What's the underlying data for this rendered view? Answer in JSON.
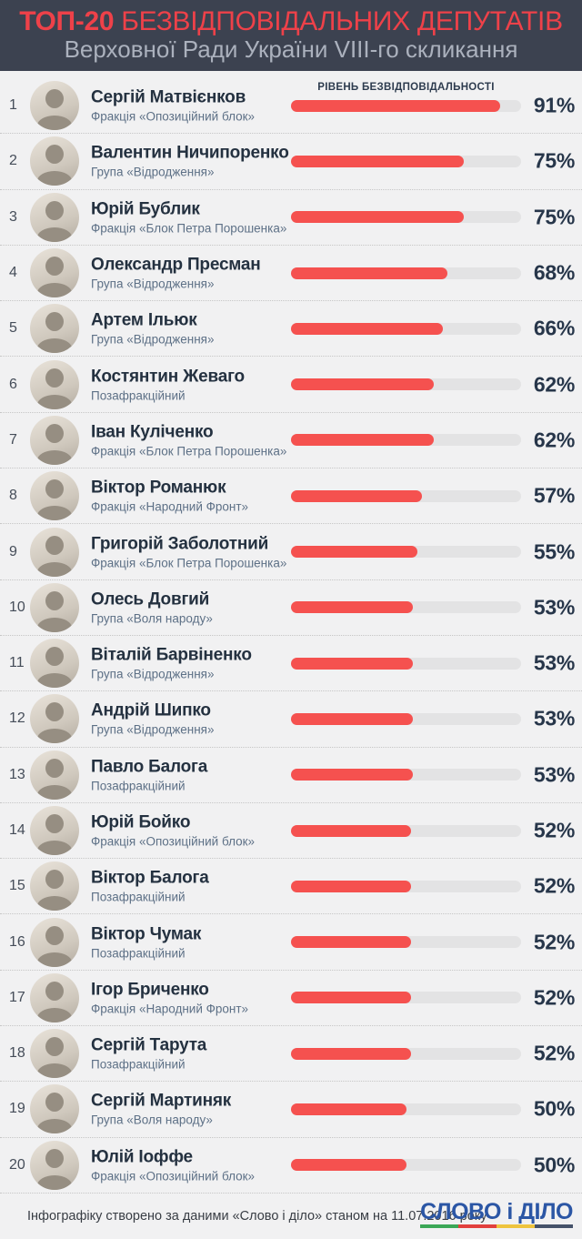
{
  "header": {
    "title_highlight": "ТОП-20",
    "title_rest": "БЕЗВІДПОВІДАЛЬНИХ ДЕПУТАТІВ",
    "subtitle": "Верховної Ради України VIII-го скликання"
  },
  "list": {
    "bar_label": "РІВЕНЬ БЕЗВІДПОВІДАЛЬНОСТІ"
  },
  "deputies": [
    {
      "rank": "1",
      "name": "Сергій Матвієнков",
      "faction": "Фракція «Опозиційний блок»",
      "value": 91,
      "value_label": "91%"
    },
    {
      "rank": "2",
      "name": "Валентин Ничипоренко",
      "faction": "Група «Відродження»",
      "value": 75,
      "value_label": "75%"
    },
    {
      "rank": "3",
      "name": "Юрій Бублик",
      "faction": "Фракція «Блок Петра Порошенка»",
      "value": 75,
      "value_label": "75%"
    },
    {
      "rank": "4",
      "name": "Олександр Пресман",
      "faction": "Група «Відродження»",
      "value": 68,
      "value_label": "68%"
    },
    {
      "rank": "5",
      "name": "Артем Ільюк",
      "faction": "Група «Відродження»",
      "value": 66,
      "value_label": "66%"
    },
    {
      "rank": "6",
      "name": "Костянтин Жеваго",
      "faction": "Позафракційний",
      "value": 62,
      "value_label": "62%"
    },
    {
      "rank": "7",
      "name": "Іван Куліченко",
      "faction": "Фракція «Блок Петра Порошенка»",
      "value": 62,
      "value_label": "62%"
    },
    {
      "rank": "8",
      "name": "Віктор Романюк",
      "faction": "Фракція «Народний Фронт»",
      "value": 57,
      "value_label": "57%"
    },
    {
      "rank": "9",
      "name": "Григорій Заболотний",
      "faction": "Фракція «Блок Петра Порошенка»",
      "value": 55,
      "value_label": "55%"
    },
    {
      "rank": "10",
      "name": "Олесь Довгий",
      "faction": "Група «Воля народу»",
      "value": 53,
      "value_label": "53%"
    },
    {
      "rank": "11",
      "name": "Віталій Барвіненко",
      "faction": "Група «Відродження»",
      "value": 53,
      "value_label": "53%"
    },
    {
      "rank": "12",
      "name": "Андрій Шипко",
      "faction": "Група «Відродження»",
      "value": 53,
      "value_label": "53%"
    },
    {
      "rank": "13",
      "name": "Павло Балога",
      "faction": "Позафракційний",
      "value": 53,
      "value_label": "53%"
    },
    {
      "rank": "14",
      "name": "Юрій Бойко",
      "faction": "Фракція «Опозиційний блок»",
      "value": 52,
      "value_label": "52%"
    },
    {
      "rank": "15",
      "name": "Віктор Балога",
      "faction": "Позафракційний",
      "value": 52,
      "value_label": "52%"
    },
    {
      "rank": "16",
      "name": "Віктор Чумак",
      "faction": "Позафракційний",
      "value": 52,
      "value_label": "52%"
    },
    {
      "rank": "17",
      "name": "Ігор Бриченко",
      "faction": "Фракція «Народний Фронт»",
      "value": 52,
      "value_label": "52%"
    },
    {
      "rank": "18",
      "name": "Сергій Тарута",
      "faction": "Позафракційний",
      "value": 52,
      "value_label": "52%"
    },
    {
      "rank": "19",
      "name": "Сергій Мартиняк",
      "faction": "Група «Воля народу»",
      "value": 50,
      "value_label": "50%"
    },
    {
      "rank": "20",
      "name": "Юлій Іоффе",
      "faction": "Фракція «Опозиційний блок»",
      "value": 50,
      "value_label": "50%"
    }
  ],
  "footer": {
    "note": "Інфографіку створено за даними «Слово і діло» станом на 11.07.2016 року",
    "logo_text": "СЛОВО і ДІЛО"
  },
  "colors": {
    "header_bg": "#3c4250",
    "title_red": "#ee4149",
    "bar_fill_red": "#f5514f",
    "bar_track_gray": "#e3e3e4",
    "text_navy": "#243140",
    "faction_bluegray": "#5d7086",
    "logo_blue": "#2b56a5",
    "logo_stripe": [
      "#3ba757",
      "#e2403d",
      "#eec43e",
      "#45526a"
    ]
  },
  "chart_data": {
    "type": "bar",
    "title": "ТОП-20 безвідповідальних депутатів Верховної Ради України VIII-го скликання",
    "xlabel": "РІВЕНЬ БЕЗВІДПОВІДАЛЬНОСТІ",
    "ylabel": "",
    "xlim": [
      0,
      100
    ],
    "grid": false,
    "legend": false,
    "categories": [
      "Сергій Матвієнков",
      "Валентин Ничипоренко",
      "Юрій Бублик",
      "Олександр Пресман",
      "Артем Ільюк",
      "Костянтин Жеваго",
      "Іван Куліченко",
      "Віктор Романюк",
      "Григорій Заболотний",
      "Олесь Довгий",
      "Віталій Барвіненко",
      "Андрій Шипко",
      "Павло Балога",
      "Юрій Бойко",
      "Віктор Балога",
      "Віктор Чумак",
      "Ігор Бриченко",
      "Сергій Тарута",
      "Сергій Мартиняк",
      "Юлій Іоффе"
    ],
    "values": [
      91,
      75,
      75,
      68,
      66,
      62,
      62,
      57,
      55,
      53,
      53,
      53,
      53,
      52,
      52,
      52,
      52,
      52,
      50,
      50
    ],
    "factions": [
      "Фракція «Опозиційний блок»",
      "Група «Відродження»",
      "Фракція «Блок Петра Порошенка»",
      "Група «Відродження»",
      "Група «Відродження»",
      "Позафракційний",
      "Фракція «Блок Петра Порошенка»",
      "Фракція «Народний Фронт»",
      "Фракція «Блок Петра Порошенка»",
      "Група «Воля народу»",
      "Група «Відродження»",
      "Група «Відродження»",
      "Позафракційний",
      "Фракція «Опозиційний блок»",
      "Позафракційний",
      "Позафракційний",
      "Фракція «Народний Фронт»",
      "Позафракційний",
      "Група «Воля народу»",
      "Фракція «Опозиційний блок»"
    ]
  }
}
